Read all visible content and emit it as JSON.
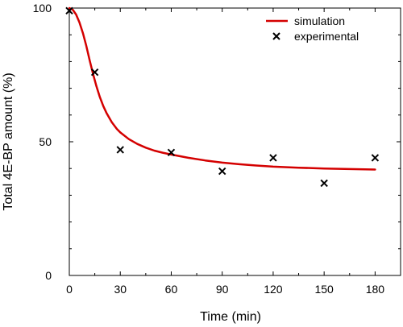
{
  "chart_data": {
    "type": "line",
    "title": "",
    "xlabel": "Time (min)",
    "ylabel": "Total 4E-BP amount (%)",
    "xlim": [
      0,
      195
    ],
    "ylim": [
      0,
      100
    ],
    "xticks": [
      0,
      30,
      60,
      90,
      120,
      150,
      180
    ],
    "yticks": [
      0,
      50,
      100
    ],
    "grid": false,
    "legend_position": "top-right",
    "series": [
      {
        "name": "simulation",
        "kind": "line",
        "color": "#d40000",
        "x": [
          0,
          2,
          4,
          6,
          8,
          10,
          12,
          14,
          16,
          18,
          20,
          22,
          25,
          28,
          30,
          35,
          40,
          45,
          50,
          55,
          60,
          70,
          80,
          90,
          100,
          110,
          120,
          135,
          150,
          165,
          180
        ],
        "y": [
          100,
          99.4,
          97.6,
          94.6,
          90.6,
          85.8,
          80.4,
          75.3,
          70.7,
          66.7,
          63.3,
          60.6,
          57.3,
          54.8,
          53.5,
          51.0,
          49.2,
          47.8,
          46.7,
          45.9,
          45.2,
          44.0,
          43.0,
          42.2,
          41.6,
          41.1,
          40.7,
          40.3,
          40.0,
          39.8,
          39.6
        ]
      },
      {
        "name": "experimental",
        "kind": "marker",
        "marker": "x",
        "color": "#000000",
        "x": [
          0,
          15,
          30,
          60,
          90,
          120,
          150,
          180
        ],
        "y": [
          99,
          76,
          47,
          46,
          39,
          44,
          34.5,
          44
        ]
      }
    ]
  }
}
